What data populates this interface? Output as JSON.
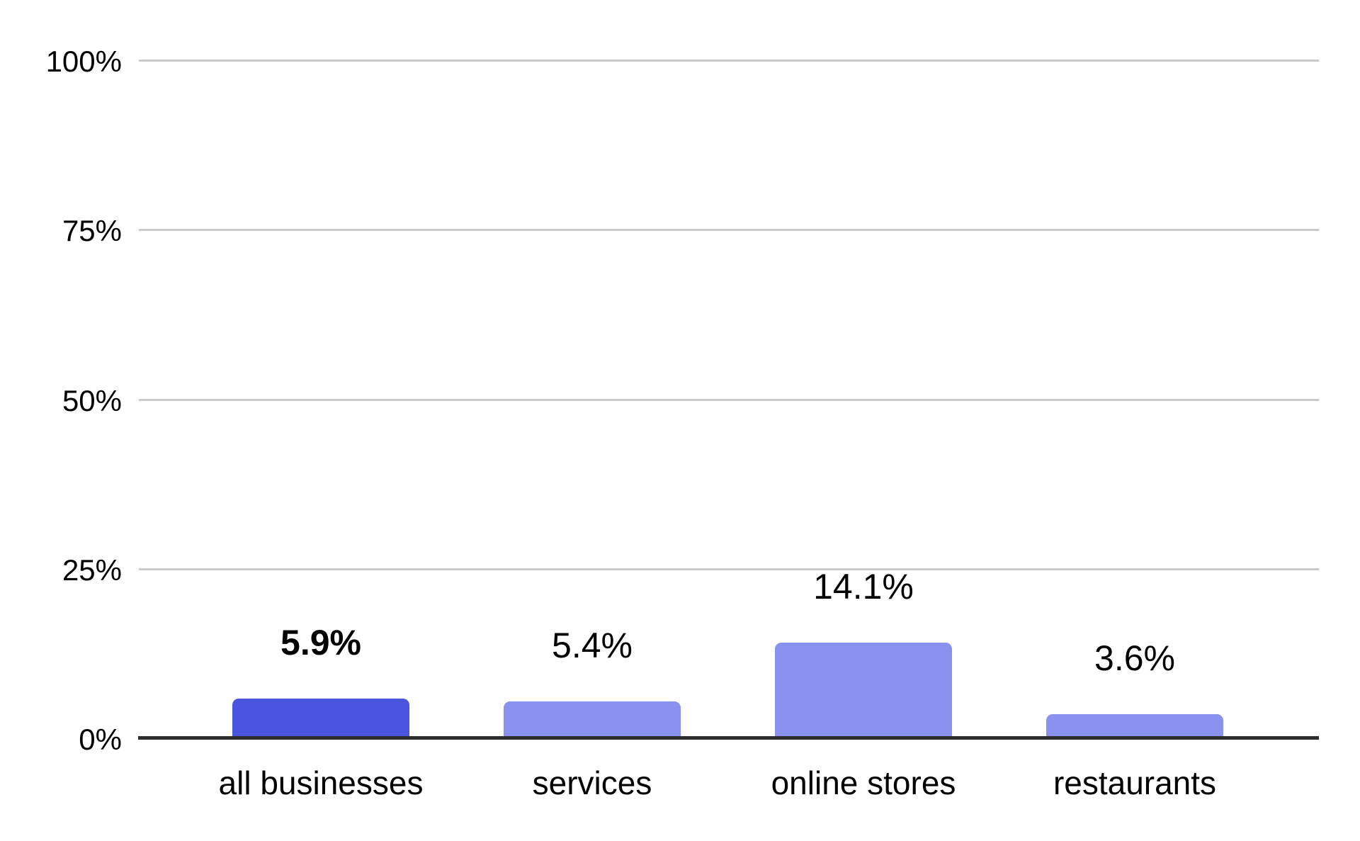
{
  "chart_data": {
    "type": "bar",
    "title": "",
    "xlabel": "",
    "ylabel": "",
    "categories": [
      "all businesses",
      "services",
      "online stores",
      "restaurants"
    ],
    "values": [
      5.9,
      5.4,
      14.1,
      3.6
    ],
    "data_labels": [
      "5.9%",
      "5.4%",
      "14.1%",
      "3.6%"
    ],
    "emphasized_index": 0,
    "ylim": [
      0,
      100
    ],
    "ytick_values": [
      0,
      25,
      50,
      75,
      100
    ],
    "ytick_labels": [
      "0%",
      "25%",
      "50%",
      "75%",
      "100%"
    ],
    "grid": true,
    "legend": "none",
    "colors": {
      "bar": "#8A92F0",
      "bar_emphasized": "#4A55DE",
      "gridline": "#CACACA",
      "axis": "#2E2E2E",
      "label_text": "#000000",
      "background": "#FFFFFF"
    }
  }
}
